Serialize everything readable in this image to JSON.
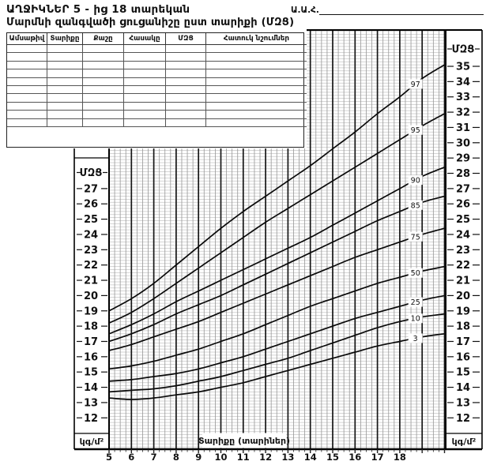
{
  "header": {
    "title_line1": "ԱՂՋԻԿՆԵՐ  5 - ից 18 տարեկան",
    "title_line2": "Մարմնի զանգվածի ցուցանիշը ըստ տարիքի (ՄԶՑ)",
    "name_field_label": "Ա.Ա.Հ."
  },
  "log_table": {
    "headers": [
      "Ամսաթիվ",
      "Տարիքը",
      "Քաշը",
      "Հասակը",
      "ՄԶՑ",
      "Հատուկ նշումներ"
    ],
    "empty_rows": 10
  },
  "chart_data": {
    "type": "line",
    "title": "Մարմնի զանգվածի ցուցանիշը ըստ տարիքի (ՄԶՑ)",
    "subtitle": "ԱՂՋԻԿՆԵՐ 5 - ից 18 տարեկան",
    "xlabel": "Տարիքը (տարիներ)",
    "y_axis_title": "ՄԶՑ",
    "y_unit": "կգ/մ²",
    "x_tick_labels": [
      "5",
      "6",
      "7",
      "8",
      "9",
      "10",
      "11",
      "12",
      "13",
      "14",
      "15",
      "16",
      "17",
      "18"
    ],
    "left_axis_ticks": [
      27,
      26,
      25,
      24,
      23,
      22,
      21,
      20,
      19,
      18,
      17,
      16,
      15,
      14,
      13,
      12
    ],
    "right_axis_ticks": [
      35,
      34,
      33,
      32,
      31,
      30,
      29,
      28,
      27,
      26,
      25,
      24,
      23,
      22,
      21,
      20,
      19,
      18,
      17,
      16,
      15,
      14,
      13,
      12
    ],
    "xlim": [
      5,
      20
    ],
    "ylim": [
      10,
      37.5
    ],
    "grid": "on",
    "legend_position": "labels-on-curves-right",
    "x": [
      5,
      6,
      7,
      8,
      9,
      10,
      11,
      12,
      13,
      14,
      15,
      16,
      17,
      18,
      19,
      20
    ],
    "series": [
      {
        "name": "97",
        "values": [
          19.0,
          19.8,
          20.8,
          22.0,
          23.2,
          24.4,
          25.5,
          26.5,
          27.5,
          28.5,
          29.6,
          30.7,
          31.9,
          33.0,
          34.2,
          35.1
        ]
      },
      {
        "name": "95",
        "values": [
          18.2,
          18.9,
          19.8,
          20.8,
          21.8,
          22.8,
          23.8,
          24.8,
          25.7,
          26.6,
          27.5,
          28.4,
          29.3,
          30.2,
          31.1,
          31.9
        ]
      },
      {
        "name": "90",
        "values": [
          17.5,
          18.1,
          18.8,
          19.6,
          20.3,
          21.0,
          21.7,
          22.4,
          23.1,
          23.8,
          24.6,
          25.4,
          26.2,
          27.0,
          27.8,
          28.4
        ]
      },
      {
        "name": "85",
        "values": [
          17.0,
          17.5,
          18.1,
          18.8,
          19.4,
          20.0,
          20.7,
          21.4,
          22.1,
          22.8,
          23.5,
          24.2,
          24.9,
          25.5,
          26.1,
          26.5
        ]
      },
      {
        "name": "75",
        "values": [
          16.4,
          16.8,
          17.3,
          17.8,
          18.3,
          18.9,
          19.5,
          20.1,
          20.7,
          21.3,
          21.9,
          22.5,
          23.0,
          23.5,
          24.0,
          24.4
        ]
      },
      {
        "name": "50",
        "values": [
          15.2,
          15.4,
          15.7,
          16.1,
          16.5,
          17.0,
          17.5,
          18.1,
          18.7,
          19.3,
          19.8,
          20.3,
          20.8,
          21.2,
          21.6,
          21.9
        ]
      },
      {
        "name": "25",
        "values": [
          14.4,
          14.5,
          14.7,
          14.9,
          15.2,
          15.6,
          16.0,
          16.5,
          17.0,
          17.5,
          18.0,
          18.5,
          18.9,
          19.3,
          19.7,
          20.0
        ]
      },
      {
        "name": "10",
        "values": [
          13.7,
          13.8,
          13.9,
          14.1,
          14.4,
          14.7,
          15.1,
          15.5,
          15.9,
          16.4,
          16.9,
          17.4,
          17.9,
          18.3,
          18.6,
          18.8
        ]
      },
      {
        "name": "3",
        "values": [
          13.3,
          13.2,
          13.3,
          13.5,
          13.7,
          14.0,
          14.3,
          14.7,
          15.1,
          15.5,
          15.9,
          16.3,
          16.7,
          17.0,
          17.3,
          17.5
        ]
      }
    ]
  }
}
